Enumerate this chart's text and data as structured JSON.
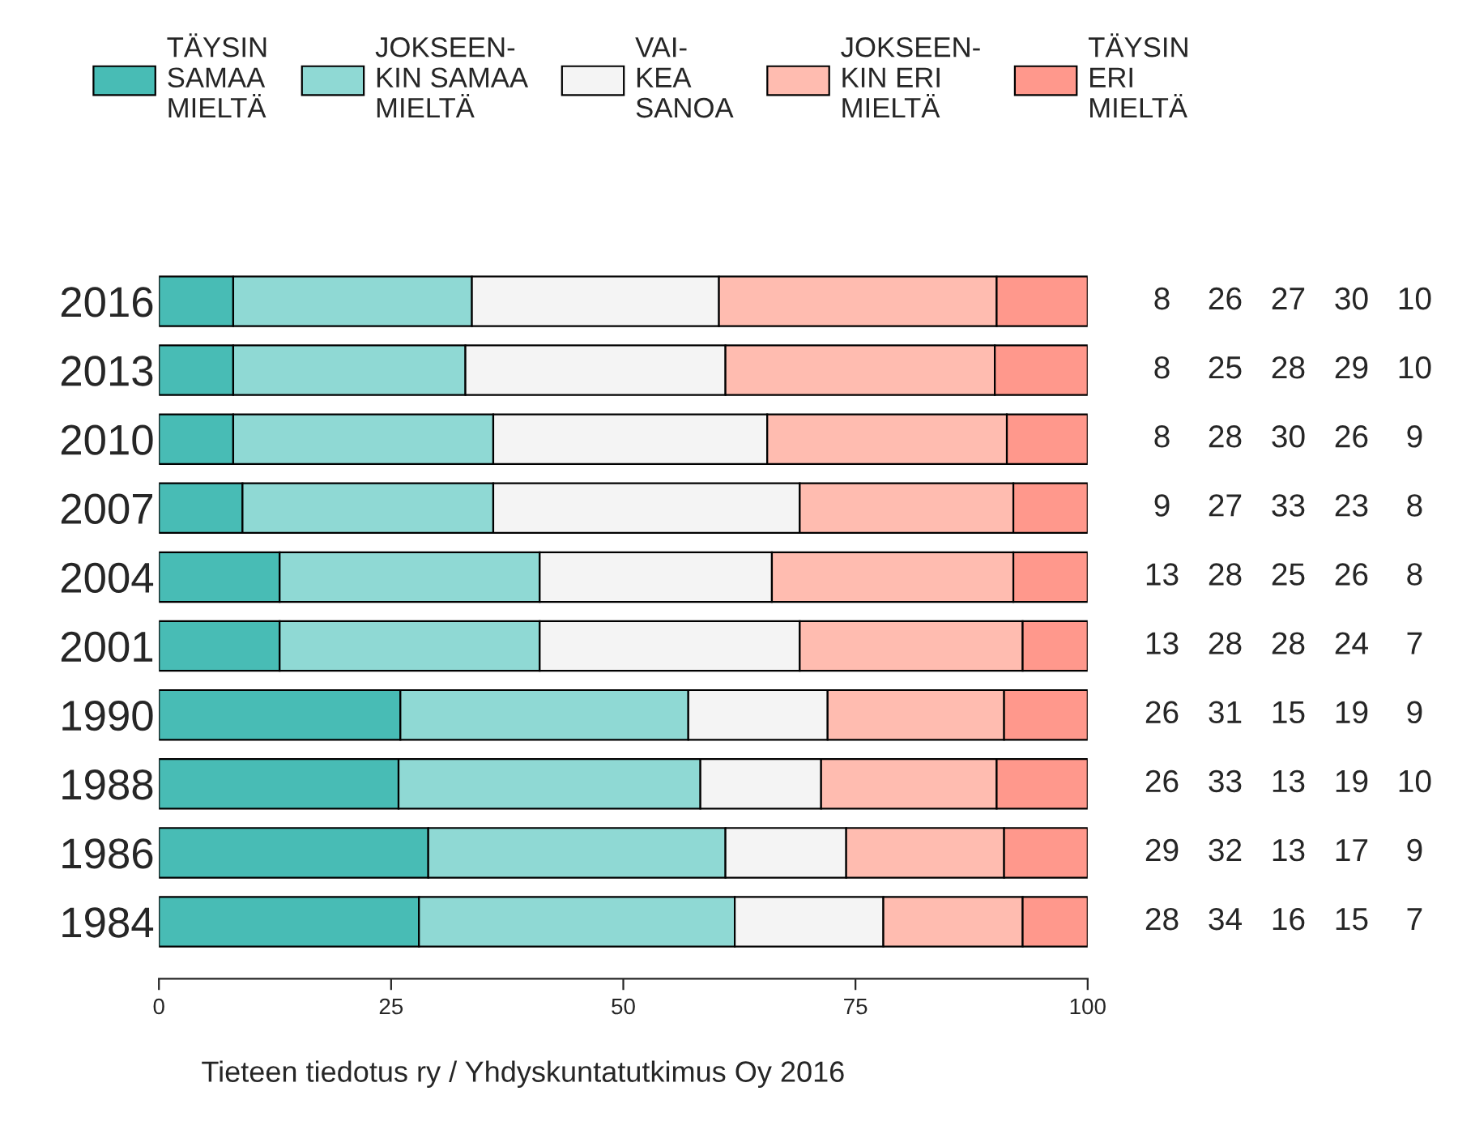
{
  "chart_data": {
    "type": "bar",
    "orientation": "horizontal",
    "stacked": true,
    "categories": [
      "2016",
      "2013",
      "2010",
      "2007",
      "2004",
      "2001",
      "1990",
      "1988",
      "1986",
      "1984"
    ],
    "series": [
      {
        "name": "TÄYSIN\nSAMAA\nMIELTÄ",
        "color": "#48bcb5",
        "values": [
          8,
          8,
          8,
          9,
          13,
          13,
          26,
          25.8,
          29,
          28
        ],
        "value_labels": [
          "8",
          "8",
          "8",
          "9",
          "13",
          "13",
          "26",
          "26",
          "29",
          "28"
        ]
      },
      {
        "name": "JOKSEEN-\nKIN SAMAA\nMIELTÄ",
        "color": "#8fd9d4",
        "values": [
          25.7,
          25,
          28,
          27,
          28,
          28,
          31,
          32.5,
          32,
          34
        ],
        "value_labels": [
          "26",
          "25",
          "28",
          "27",
          "28",
          "28",
          "31",
          "33",
          "32",
          "34"
        ]
      },
      {
        "name": "VAI-\nKEA\nSANOA",
        "color": "#f4f4f4",
        "values": [
          26.6,
          28,
          29.5,
          33,
          25,
          28,
          15,
          13,
          13,
          16
        ],
        "value_labels": [
          "27",
          "28",
          "30",
          "33",
          "25",
          "28",
          "15",
          "13",
          "13",
          "16"
        ]
      },
      {
        "name": "JOKSEEN-\nKIN ERI\nMIELTÄ",
        "color": "#ffbcb0",
        "values": [
          29.9,
          29,
          25.8,
          23,
          26,
          24,
          19,
          18.9,
          17,
          15
        ],
        "value_labels": [
          "30",
          "29",
          "26",
          "23",
          "26",
          "24",
          "19",
          "19",
          "17",
          "15"
        ]
      },
      {
        "name": "TÄYSIN\nERI\nMIELTÄ",
        "color": "#ff988c",
        "values": [
          9.8,
          10,
          8.7,
          8,
          8,
          7,
          9,
          9.8,
          9,
          7
        ],
        "value_labels": [
          "10",
          "10",
          "9",
          "8",
          "8",
          "7",
          "9",
          "10",
          "9",
          "7"
        ]
      }
    ],
    "xlim": [
      0,
      100
    ],
    "xticks": [
      0,
      25,
      50,
      75,
      100
    ],
    "legend": "top",
    "grid": false,
    "annotations": [
      "Tieteen tiedotus ry / Yhdyskuntatutkimus Oy 2016"
    ]
  }
}
